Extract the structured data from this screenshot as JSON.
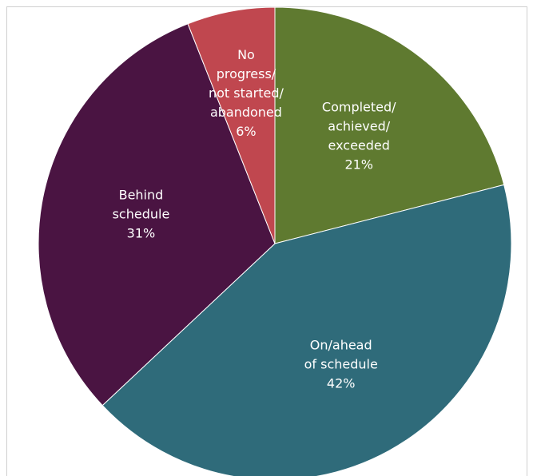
{
  "chart_data": {
    "type": "pie",
    "categories": [
      "Completed/\nachieved/\nexceeded",
      "On/ahead\nof schedule",
      "Behind\nschedule",
      "No\nprogress/\nnot started/\nabandoned"
    ],
    "values": [
      21,
      42,
      31,
      6
    ],
    "value_labels": [
      "21%",
      "42%",
      "31%",
      "6%"
    ],
    "colors": [
      "#5f7a30",
      "#2f6b7a",
      "#4a1442",
      "#c0474f"
    ]
  }
}
